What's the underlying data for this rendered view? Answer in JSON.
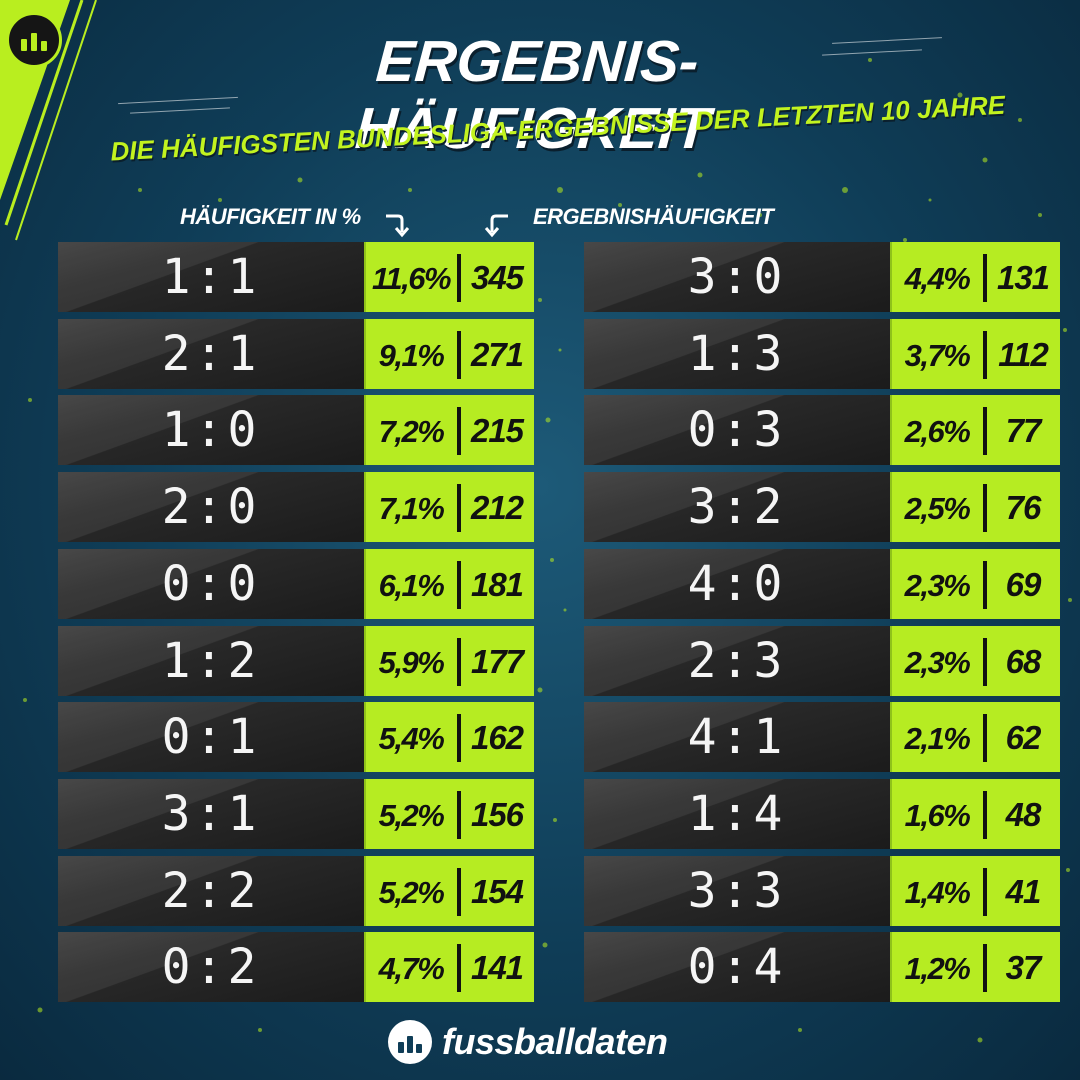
{
  "header": {
    "title": "ERGEBNIS-HÄUFIGKEIT",
    "subtitle": "DIE HÄUFIGSTEN BUNDESLIGA-ERGEBNISSE DER LETZTEN 10 JAHRE"
  },
  "labels": {
    "percent": "HÄUFIGKEIT IN %",
    "count": "ERGEBNISHÄUFIGKEIT"
  },
  "left_rows": [
    {
      "score": "1:1",
      "pct": "11,6%",
      "count": "345"
    },
    {
      "score": "2:1",
      "pct": "9,1%",
      "count": "271"
    },
    {
      "score": "1:0",
      "pct": "7,2%",
      "count": "215"
    },
    {
      "score": "2:0",
      "pct": "7,1%",
      "count": "212"
    },
    {
      "score": "0:0",
      "pct": "6,1%",
      "count": "181"
    },
    {
      "score": "1:2",
      "pct": "5,9%",
      "count": "177"
    },
    {
      "score": "0:1",
      "pct": "5,4%",
      "count": "162"
    },
    {
      "score": "3:1",
      "pct": "5,2%",
      "count": "156"
    },
    {
      "score": "2:2",
      "pct": "5,2%",
      "count": "154"
    },
    {
      "score": "0:2",
      "pct": "4,7%",
      "count": "141"
    }
  ],
  "right_rows": [
    {
      "score": "3:0",
      "pct": "4,4%",
      "count": "131"
    },
    {
      "score": "1:3",
      "pct": "3,7%",
      "count": "112"
    },
    {
      "score": "0:3",
      "pct": "2,6%",
      "count": "77"
    },
    {
      "score": "3:2",
      "pct": "2,5%",
      "count": "76"
    },
    {
      "score": "4:0",
      "pct": "2,3%",
      "count": "69"
    },
    {
      "score": "2:3",
      "pct": "2,3%",
      "count": "68"
    },
    {
      "score": "4:1",
      "pct": "2,1%",
      "count": "62"
    },
    {
      "score": "1:4",
      "pct": "1,6%",
      "count": "48"
    },
    {
      "score": "3:3",
      "pct": "1,4%",
      "count": "41"
    },
    {
      "score": "0:4",
      "pct": "1,2%",
      "count": "37"
    }
  ],
  "footer": {
    "brand": "fussballdaten",
    "logo_icon": "bar-chart-icon"
  },
  "colors": {
    "accent": "#b6ec22",
    "background": "#0f3d57",
    "score_box": "#222222"
  }
}
